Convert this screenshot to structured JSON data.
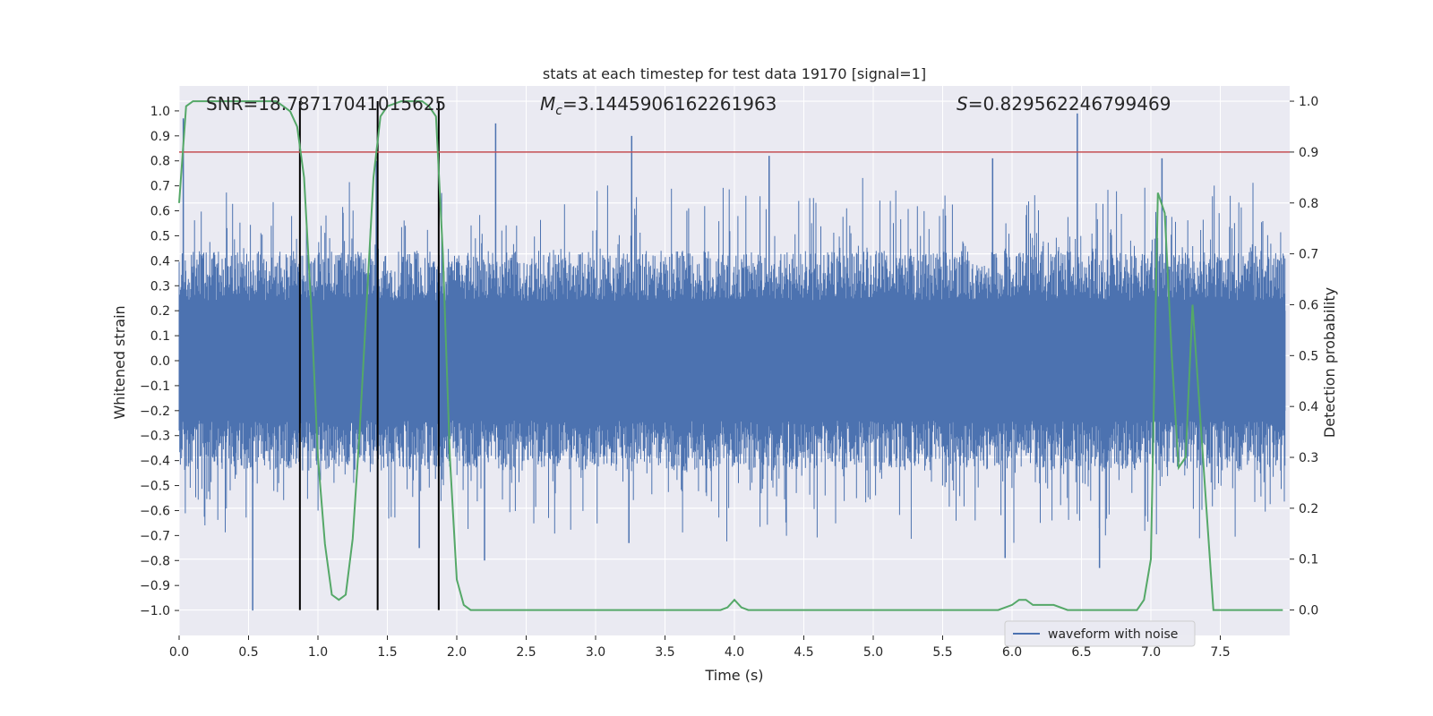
{
  "chart_data": {
    "type": "line",
    "title": "stats at each timestep for test data 19170 [signal=1]",
    "xlabel": "Time (s)",
    "ylabel": "Whitened strain",
    "ylabel_right": "Detection probability",
    "xlim": [
      0.0,
      8.0
    ],
    "ylim": [
      -1.1,
      1.1
    ],
    "ylim_right": [
      -0.05,
      1.03
    ],
    "x_ticks": [
      "0.0",
      "0.5",
      "1.0",
      "1.5",
      "2.0",
      "2.5",
      "3.0",
      "3.5",
      "4.0",
      "4.5",
      "5.0",
      "5.5",
      "6.0",
      "6.5",
      "7.0",
      "7.5"
    ],
    "y_ticks": [
      "1.0",
      "0.9",
      "0.8",
      "0.7",
      "0.6",
      "0.5",
      "0.4",
      "0.3",
      "0.2",
      "0.1",
      "0.0",
      "−0.1",
      "−0.2",
      "−0.3",
      "−0.4",
      "−0.5",
      "−0.6",
      "−0.7",
      "−0.8",
      "−0.9",
      "−1.0"
    ],
    "y_right_ticks": [
      "1.0",
      "0.9",
      "0.8",
      "0.7",
      "0.6",
      "0.5",
      "0.4",
      "0.3",
      "0.2",
      "0.1",
      "0.0"
    ],
    "annotations": {
      "snr": "SNR=18.78717041015625",
      "mc_symbol": "M",
      "mc_sub": "c",
      "mc_value": "=3.1445906162261963",
      "s_symbol": "S",
      "s_value": "=0.829562246799469"
    },
    "legend": {
      "label": "waveform with noise",
      "location": "lower-right"
    },
    "threshold": {
      "value": 0.9,
      "axis": "right",
      "color": "#c44e52"
    },
    "vertical_lines": [
      0.87,
      1.43,
      1.87
    ],
    "series": [
      {
        "name": "waveform with noise",
        "color": "#4c72b0",
        "style": "dense noise trace",
        "peaks": [
          {
            "x": 0.53,
            "y": -1.0
          },
          {
            "x": 0.03,
            "y": 0.97
          },
          {
            "x": 1.42,
            "y": 0.8
          },
          {
            "x": 2.28,
            "y": 0.95
          },
          {
            "x": 3.26,
            "y": 0.9
          },
          {
            "x": 4.25,
            "y": 0.82
          },
          {
            "x": 6.47,
            "y": 0.99
          },
          {
            "x": 6.63,
            "y": -0.83
          },
          {
            "x": 7.08,
            "y": 0.81
          },
          {
            "x": 5.86,
            "y": 0.81
          },
          {
            "x": 2.2,
            "y": -0.8
          },
          {
            "x": 1.73,
            "y": -0.75
          },
          {
            "x": 3.24,
            "y": -0.73
          },
          {
            "x": 5.95,
            "y": -0.79
          }
        ]
      },
      {
        "name": "detection probability",
        "color": "#55a868",
        "axis": "right",
        "x": [
          0.0,
          0.05,
          0.1,
          0.2,
          0.3,
          0.4,
          0.5,
          0.6,
          0.7,
          0.75,
          0.8,
          0.85,
          0.9,
          0.95,
          1.0,
          1.05,
          1.1,
          1.15,
          1.2,
          1.25,
          1.3,
          1.35,
          1.4,
          1.45,
          1.5,
          1.55,
          1.6,
          1.65,
          1.7,
          1.75,
          1.8,
          1.85,
          1.9,
          1.95,
          2.0,
          2.05,
          2.1,
          2.15,
          2.2,
          2.5,
          2.6,
          2.7,
          2.8,
          2.9,
          3.0,
          3.2,
          3.4,
          3.6,
          3.7,
          3.8,
          3.9,
          3.95,
          4.0,
          4.05,
          4.1,
          4.2,
          4.5,
          4.6,
          4.7,
          4.8,
          4.9,
          5.0,
          5.5,
          5.9,
          6.0,
          6.05,
          6.1,
          6.15,
          6.2,
          6.3,
          6.4,
          6.5,
          6.6,
          6.7,
          6.8,
          6.9,
          6.95,
          7.0,
          7.05,
          7.1,
          7.15,
          7.2,
          7.25,
          7.3,
          7.35,
          7.4,
          7.45,
          7.5,
          7.6,
          7.7,
          7.8,
          7.9,
          7.95
        ],
        "y": [
          0.8,
          0.99,
          1.0,
          1.0,
          1.0,
          1.0,
          1.0,
          1.0,
          1.0,
          0.99,
          0.98,
          0.95,
          0.85,
          0.6,
          0.3,
          0.13,
          0.03,
          0.02,
          0.03,
          0.14,
          0.35,
          0.6,
          0.85,
          0.97,
          0.99,
          0.995,
          1.0,
          1.0,
          1.0,
          1.0,
          0.99,
          0.97,
          0.7,
          0.3,
          0.06,
          0.01,
          0.0,
          0.0,
          0.0,
          0.0,
          0.0,
          0.0,
          0.0,
          0.0,
          0.0,
          0.0,
          0.0,
          0.0,
          0.0,
          0.0,
          0.0,
          0.005,
          0.02,
          0.005,
          0.0,
          0.0,
          0.0,
          0.0,
          0.0,
          0.0,
          0.0,
          0.0,
          0.0,
          0.0,
          0.01,
          0.02,
          0.02,
          0.01,
          0.01,
          0.01,
          0.0,
          0.0,
          0.0,
          0.0,
          0.0,
          0.0,
          0.02,
          0.1,
          0.82,
          0.78,
          0.5,
          0.28,
          0.3,
          0.6,
          0.4,
          0.2,
          0.0,
          0.0,
          0.0,
          0.0,
          0.0,
          0.0,
          0.0
        ]
      }
    ]
  }
}
